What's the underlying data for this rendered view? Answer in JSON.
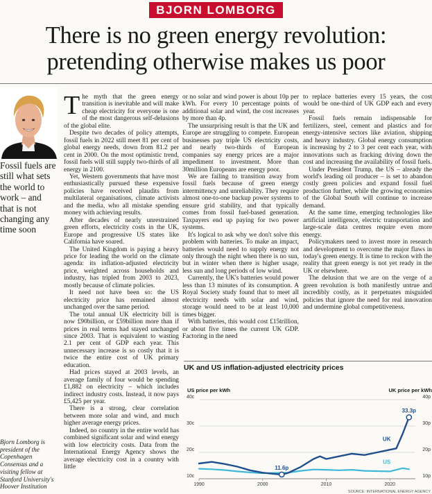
{
  "kicker": "BJORN LOMBORG",
  "headline": {
    "line1": "There is no green energy revolution:",
    "line2": "pretending otherwise makes us poor"
  },
  "pullquote": "Fossil fuels are still what sets the world to work – and that is not changing any time soon",
  "bio": "Bjorn Lomborg is president of the Copenhagen Consensus and a visiting fellow at Stanford University's Hoover Institution",
  "col1": {
    "dropcap": "T",
    "p1": "he myth that the green energy transition is inevitable and will make cheap electricity for everyone is one of the most dangerous self-delusions of the global elite.",
    "p2": "Despite two decades of policy attempts, fossil fuels in 2022 still meet 81 per cent of global energy needs, down from 81.2 per cent in 2000. On the most optimistic trend, fossil fuels will still supply two-thirds of all energy in 2100.",
    "p3": "Yet, Western governments that have most enthusiastically pursued these expensive policies have received plaudits from multilateral organisations, climate activists and the media, who all mistake spending money with achieving results.",
    "p4": "After decades of nearly unrestrained green efforts, electricity costs in the UK, Europe and progressive US states like California have soared.",
    "p5": "The United Kingdom is paying a heavy price for leading the world on the climate agenda: its inflation-adjusted electricity price, weighted across households and industry, has tripled from 2003 to 2023, mostly because of climate policies.",
    "p6": "It need not have been so: the US electricity price has remained almost unchanged over the same period.",
    "p7": "The total annual UK electricity bill is now £90billion, or £59billion more than if prices in real terms had stayed unchanged since 2003. That is equivalent to wasting 2.1 per cent of GDP each year. This unnecessary increase is so costly that it is twice the entire cost of UK primary education.",
    "p8": "Had prices stayed at 2003 levels, an average family of four would be spending £1,882 on electricity – which includes indirect industry costs. Instead, it now pays £5,425 per year.",
    "p9": "There is a strong, clear correlation between more solar and wind, and much higher average energy prices.",
    "p10": "Indeed, no country in the entire world has combined significant solar and wind energy with low electricity costs. Data from the International Energy Agency shows the average electricity cost in a country with little"
  },
  "col2": {
    "p1": "or no solar and wind power is about 10p per kWh. For every 10 percentage points of additional solar and wind, the cost increases by more than 4p.",
    "p2": "The unsurprising result is that the UK and Europe are struggling to compete. European businesses pay triple US electricity costs, and nearly two-thirds of European companies say energy prices are a major impediment to investment. More than 30million Europeans are energy poor.",
    "p3": "We are failing to transition away from fossil fuels because of green energy intermittency and unreliability. They require almost one-to-one backup power systems to ensure grid stability, and that typically comes from fossil fuel-based generation. Taxpayers end up paying for two power systems.",
    "p4": "It's logical to ask why we don't solve this problem with batteries. To make an impact, batteries would need to supply energy not only through the night when there is no sun, but in winter when there is higher usage, less sun and long periods of low wind.",
    "p5": "Currently, the UK's batteries would power less than 13 minutes of its consumption. A Royal Society study found that to meet all electricity needs with solar and wind, storage would need to be at least 10,000 times bigger.",
    "p6": "With batteries, this would cost £15trillion, or about five times the current UK GDP. Factoring in the need"
  },
  "col3": {
    "p1": "to replace batteries every 15 years, the cost would be one-third of UK GDP each and every year.",
    "p2": "Fossil fuels remain indispensable for fertilizers, steel, cement and plastics and for energy-intensive sectors like aviation, shipping and heavy industry. Global energy consumption is increasing by 2 to 3 per cent each year, with innovations such as fracking driving down the cost and increasing the availability of fossil fuels.",
    "p3": "Under President Trump, the US – already the world's leading oil producer – is set to abandon costly green policies and expand fossil fuel production further, while the growing economies of the Global South will continue to increase demand.",
    "p4": "At the same time, emerging technologies like artificial intelligence, electric transportation and large-scale data centres require even more energy.",
    "p5": "Policymakers need to invest more in research and development to overcome the major flaws in today's green energy. It is time to reckon with the reality that green energy is not yet ready in the UK or elsewhere.",
    "p6": "The delusion that we are on the verge of a green revolution is both manifestly untrue and incredibly costly, as it perpetuates misguided policies that ignore the need for real innovation and undermine global competitiveness."
  },
  "colors": {
    "kicker_bg": "#c8102e",
    "uk_line": "#1f4e8c",
    "us_line": "#3fb8d8",
    "text": "#1a1a1a"
  },
  "chart_data": {
    "type": "line",
    "title": "UK and US inflation-adjusted electricity prices",
    "ylabel_left": "US price per kWh",
    "ylabel_right": "UK price per kWh",
    "source": "SOURCE: INTERNATIONAL ENERGY AGENCY",
    "xlim": [
      1990,
      2024
    ],
    "ylim": [
      10,
      40
    ],
    "x_ticks": [
      "1990",
      "2000",
      "2010",
      "2020"
    ],
    "y_ticks_left": [
      "40c",
      "30c",
      "20c",
      "10c"
    ],
    "y_ticks_right": [
      "40p",
      "30p",
      "20p",
      "10p"
    ],
    "annotations": [
      {
        "label": "11.6p",
        "x": 2003,
        "y": 11.6
      },
      {
        "label": "33.3p",
        "x": 2023,
        "y": 33.3
      }
    ],
    "series": [
      {
        "name": "UK",
        "color": "#1f4e8c",
        "x": [
          1990,
          1992,
          1994,
          1996,
          1998,
          2000,
          2002,
          2003,
          2004,
          2006,
          2008,
          2009,
          2010,
          2012,
          2014,
          2016,
          2018,
          2020,
          2021,
          2022,
          2023
        ],
        "values": [
          15.8,
          16.4,
          15.6,
          14.6,
          13.2,
          12.3,
          11.8,
          11.6,
          12.2,
          14.5,
          17.5,
          18.5,
          17.5,
          18.5,
          19.5,
          19.0,
          20.0,
          21.0,
          21.5,
          27.0,
          33.3
        ]
      },
      {
        "name": "US",
        "color": "#3fb8d8",
        "x": [
          1990,
          1992,
          1994,
          1996,
          1998,
          2000,
          2002,
          2004,
          2006,
          2008,
          2010,
          2012,
          2014,
          2016,
          2018,
          2020,
          2022,
          2023
        ],
        "values": [
          13.8,
          13.6,
          13.3,
          12.8,
          12.4,
          12.1,
          12.2,
          12.3,
          13.0,
          13.5,
          13.4,
          13.2,
          13.4,
          13.0,
          12.9,
          12.8,
          14.0,
          13.6
        ]
      }
    ]
  }
}
